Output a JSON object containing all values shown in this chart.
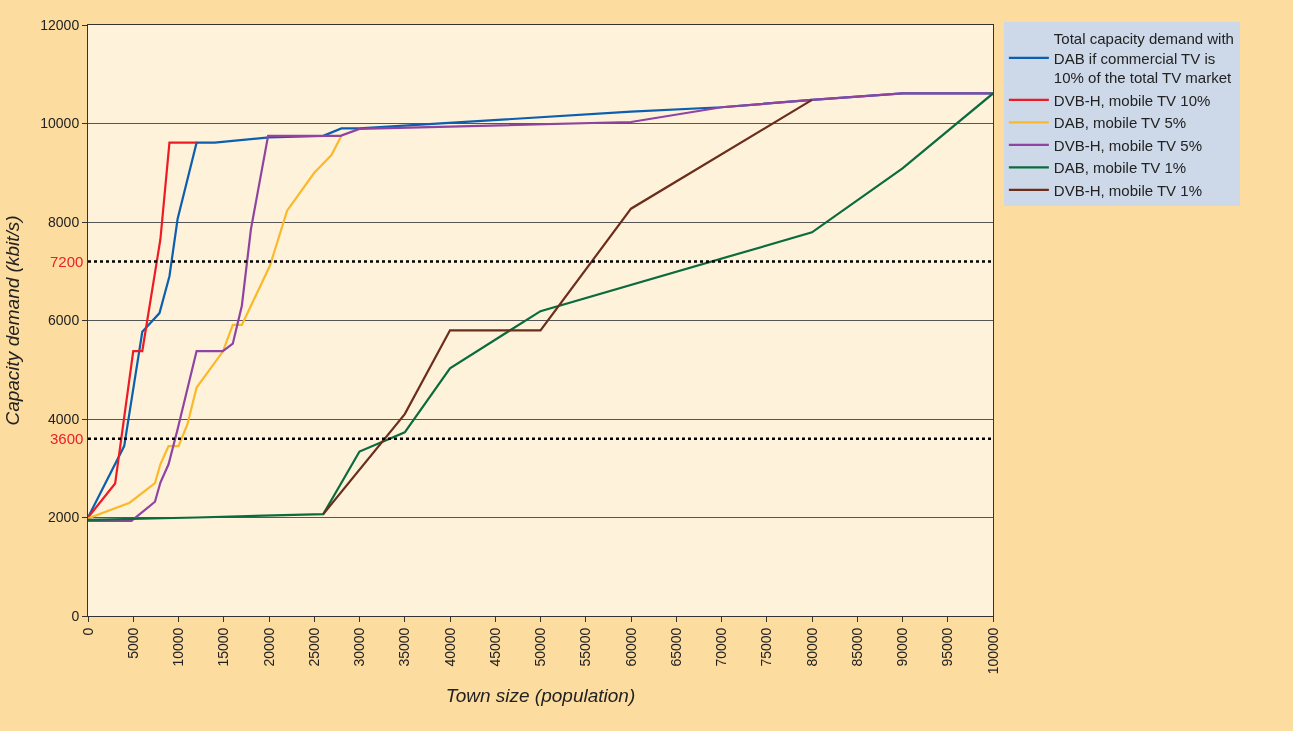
{
  "chart_data": {
    "type": "line",
    "xlabel": "Town size (population)",
    "ylabel": "Capacity demand (kbit/s)",
    "xlim": [
      0,
      100000
    ],
    "xticks": [
      0,
      5000,
      10000,
      15000,
      20000,
      25000,
      30000,
      35000,
      40000,
      45000,
      50000,
      55000,
      60000,
      65000,
      70000,
      75000,
      80000,
      85000,
      90000,
      95000,
      100000
    ],
    "ylim": [
      0,
      12000
    ],
    "yticks": [
      0,
      2000,
      4000,
      6000,
      8000,
      10000,
      12000
    ],
    "grid": "y",
    "legend": "right",
    "marker": "none",
    "line_style": "solid",
    "ref_lines": [
      {
        "axis": "y",
        "value": 7200,
        "label": "7200",
        "color": "#000000",
        "line_style": "dotted"
      },
      {
        "axis": "y",
        "value": 3600,
        "label": "3600",
        "color": "#000000",
        "line_style": "dotted"
      }
    ],
    "series": [
      {
        "name": "Total capacity demand with DAB if commercial TV is 10% of the total TV market",
        "color": "#0b5fae",
        "x": [
          0,
          4000,
          6000,
          7900,
          9000,
          9900,
          12000,
          14000,
          20000,
          26000,
          28000,
          30000,
          60000,
          70000,
          80000,
          90000,
          100000
        ],
        "values": [
          2000,
          3450,
          5770,
          6150,
          6900,
          8060,
          9610,
          9610,
          9720,
          9750,
          9900,
          9900,
          10240,
          10330,
          10480,
          10610,
          10610
        ]
      },
      {
        "name": "DVB-H, mobile TV 10%",
        "color": "#ed1c24",
        "x": [
          0,
          3000,
          5000,
          6000,
          8000,
          9000,
          12000
        ],
        "values": [
          2000,
          2690,
          5380,
          5380,
          7650,
          9610,
          9610
        ]
      },
      {
        "name": "DAB, mobile TV 5%",
        "color": "#fbb829",
        "x": [
          0,
          4600,
          7400,
          8000,
          8900,
          10000,
          11000,
          12000,
          14900,
          16000,
          17000,
          20100,
          22000,
          25000,
          26900,
          28000
        ],
        "values": [
          1980,
          2300,
          2700,
          3080,
          3450,
          3450,
          3900,
          4640,
          5370,
          5910,
          5910,
          7110,
          8230,
          9000,
          9360,
          9750
        ]
      },
      {
        "name": "DVB-H, mobile TV 5%",
        "color": "#8e44a0",
        "x": [
          0,
          4800,
          7400,
          8000,
          8900,
          9900,
          12000,
          14900,
          16000,
          17000,
          18000,
          19900,
          27900,
          30000,
          60000,
          70000,
          80000,
          90000,
          100000
        ],
        "values": [
          1930,
          1930,
          2320,
          2710,
          3080,
          3790,
          5380,
          5380,
          5530,
          6300,
          7850,
          9750,
          9750,
          9890,
          10030,
          10330,
          10480,
          10610,
          10610
        ]
      },
      {
        "name": "DAB, mobile TV 1%",
        "color": "#0a6b3c",
        "x": [
          0,
          12000,
          26000,
          30000,
          35000,
          40000,
          50000,
          80000,
          90000,
          100000
        ],
        "values": [
          1950,
          2000,
          2070,
          3340,
          3730,
          5030,
          6190,
          7790,
          9090,
          10610
        ]
      },
      {
        "name": "DVB-H, mobile TV 1%",
        "color": "#6b2d1c",
        "x": [
          26000,
          35000,
          40000,
          50000,
          60000,
          80000
        ],
        "values": [
          2070,
          4100,
          5800,
          5800,
          8270,
          10480
        ]
      }
    ]
  }
}
